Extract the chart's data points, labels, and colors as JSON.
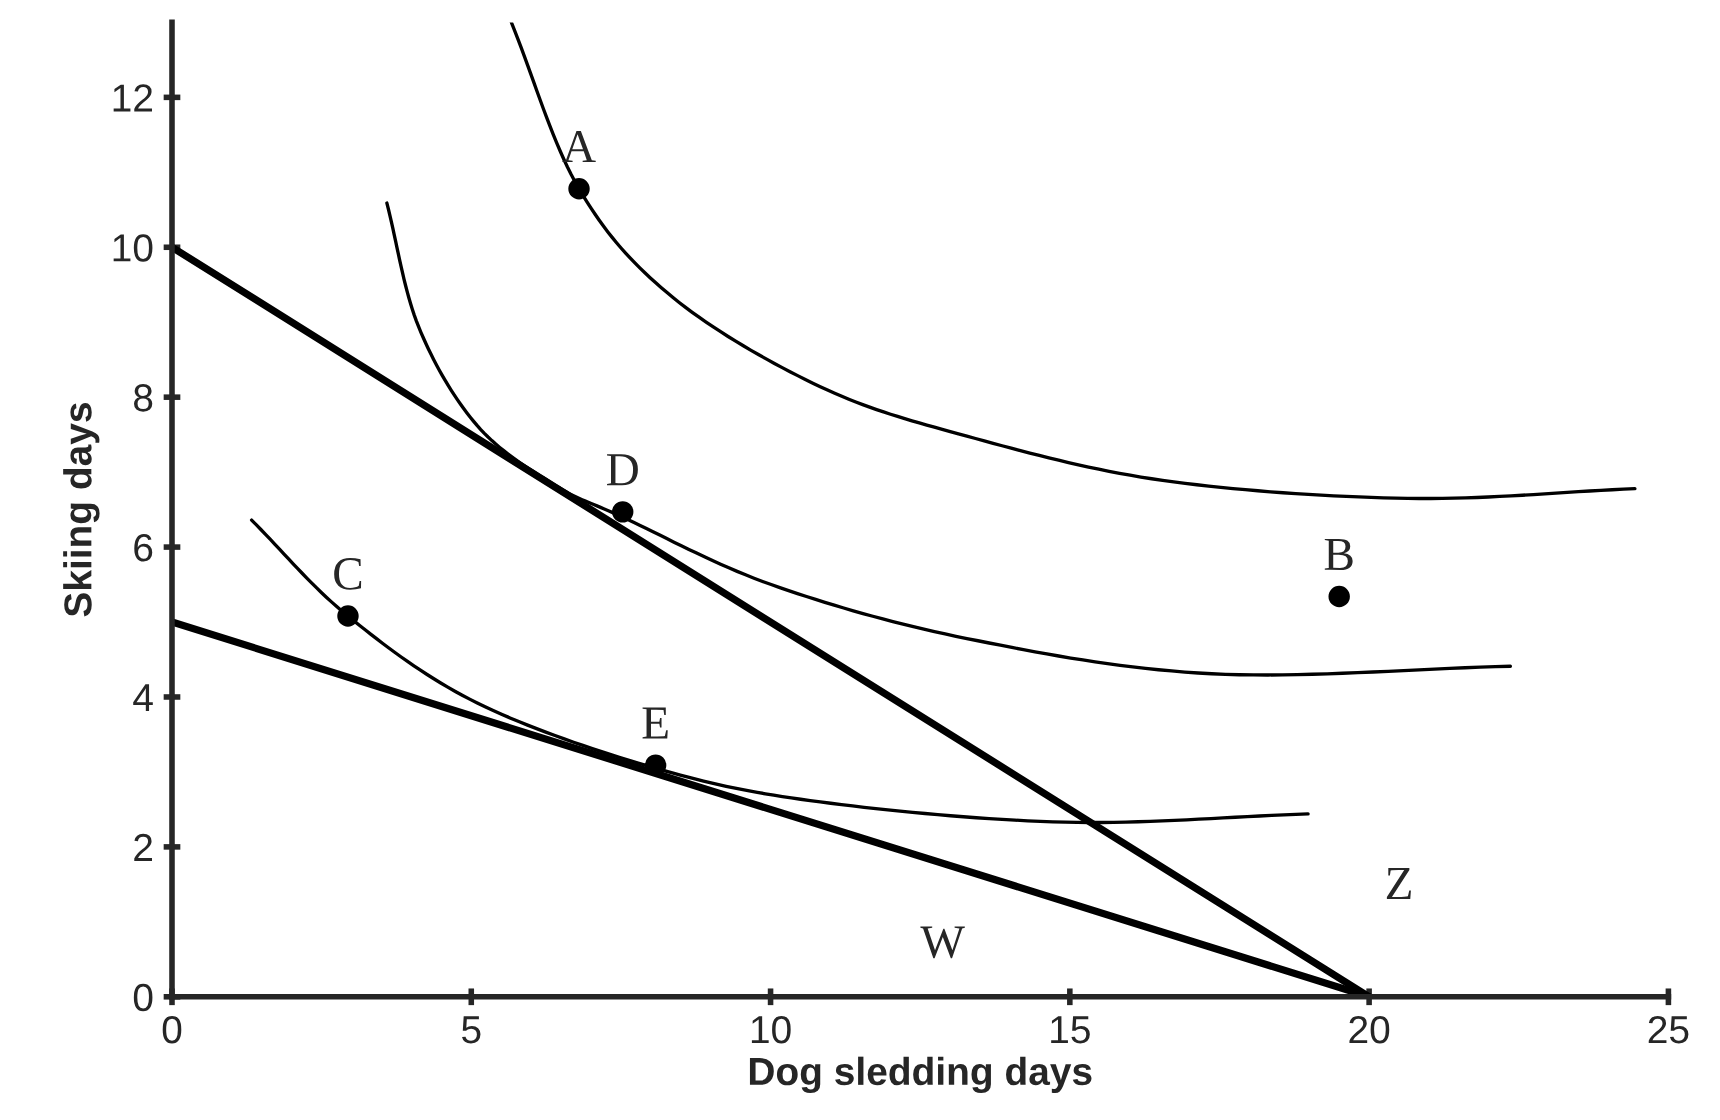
{
  "chart_data": {
    "type": "line",
    "xlabel": "Dog sledding days",
    "ylabel": "Skiing days",
    "xlim": [
      0,
      25
    ],
    "xticks": [
      0,
      5,
      10,
      15,
      20,
      25
    ],
    "ylim": [
      0,
      13
    ],
    "yticks": [
      0,
      2,
      4,
      6,
      8,
      10,
      12
    ],
    "grid": false,
    "legend": false,
    "series": [
      {
        "color": "#000000",
        "x": [
          0,
          20
        ],
        "values": [
          10,
          0
        ],
        "line_style": "solid",
        "marker": "none"
      },
      {
        "color": "#000000",
        "x": [
          0,
          20
        ],
        "values": [
          5,
          0
        ],
        "line_style": "solid",
        "marker": "none"
      },
      {
        "color": "#000000",
        "x": [
          5.67,
          6.8,
          8.37,
          10.83,
          13.28,
          16.55,
          20.64,
          24.44
        ],
        "values": [
          13.0,
          10.78,
          9.33,
          8.14,
          7.48,
          6.89,
          6.65,
          6.78
        ],
        "line_style": "solid",
        "marker": "none"
      },
      {
        "color": "#000000",
        "x": [
          3.59,
          4.12,
          5.1,
          6.41,
          7.53,
          10.01,
          13.28,
          17.37,
          22.36
        ],
        "values": [
          10.59,
          8.94,
          7.62,
          6.82,
          6.4,
          5.5,
          4.78,
          4.31,
          4.41
        ],
        "line_style": "solid",
        "marker": "none"
      },
      {
        "color": "#000000",
        "x": [
          1.33,
          2.94,
          5.1,
          8.08,
          10.83,
          14.92,
          18.98
        ],
        "values": [
          6.36,
          5.08,
          3.92,
          3.05,
          2.6,
          2.33,
          2.44
        ],
        "line_style": "solid",
        "marker": "none"
      },
      {
        "type": "scatter",
        "color": "#000000",
        "x": [
          6.8,
          19.5,
          2.94,
          7.53,
          8.08
        ],
        "values": [
          10.78,
          5.34,
          5.08,
          6.47,
          3.09
        ],
        "marker": "circle"
      }
    ],
    "annotations": [
      {
        "text": "A",
        "x": 6.8,
        "y": 10.78
      },
      {
        "text": "B",
        "x": 19.5,
        "y": 5.34
      },
      {
        "text": "C",
        "x": 2.94,
        "y": 5.08
      },
      {
        "text": "D",
        "x": 7.53,
        "y": 6.47
      },
      {
        "text": "E",
        "x": 8.08,
        "y": 3.09
      },
      "W",
      "Z"
    ]
  }
}
